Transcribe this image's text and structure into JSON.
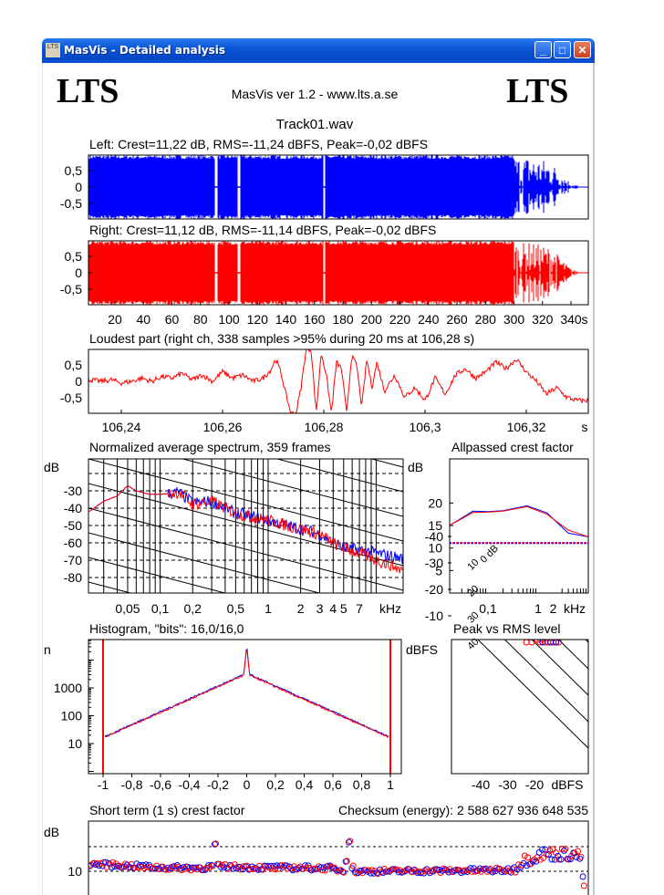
{
  "window": {
    "title": "MasVis - Detailed analysis",
    "icon_text": "LTS",
    "minimize": "_",
    "maximize": "□",
    "close": "✕"
  },
  "header": {
    "logo_left": "LTS",
    "logo_right": "LTS",
    "version": "MasVis ver 1.2 - www.lts.a.se",
    "file": "Track01.wav"
  },
  "colors": {
    "left": "#0000ff",
    "right": "#ff0000"
  },
  "chart_data": [
    {
      "id": "left-waveform",
      "type": "area",
      "title": "Left: Crest=11,22 dB, RMS=-11,24 dBFS, Peak=-0,02 dBFS",
      "yticks": [
        "0,5",
        "0",
        "-0,5"
      ],
      "ylim": [
        -1,
        1
      ],
      "xlim_s": [
        0,
        350
      ],
      "envelope_step_s": 5,
      "envelope": [
        0.97,
        0.97,
        0.97,
        0.97,
        0.97,
        0.97,
        0.97,
        0.97,
        0.97,
        0.97,
        0.97,
        0.97,
        0.97,
        0.97,
        0.97,
        0.97,
        0.97,
        0.97,
        0.97,
        0.97,
        0.97,
        0.97,
        0.97,
        0.97,
        0.97,
        0.97,
        0.97,
        0.97,
        0.97,
        0.97,
        0.97,
        0.97,
        0.97,
        0.97,
        0.97,
        0.97,
        0.97,
        0.97,
        0.97,
        0.97,
        0.97,
        0.97,
        0.97,
        0.97,
        0.97,
        0.97,
        0.97,
        0.97,
        0.97,
        0.97,
        0.97,
        0.97,
        0.97,
        0.97,
        0.97,
        0.97,
        0.97,
        0.97,
        0.97,
        0.97,
        0.97,
        0.9,
        0.95,
        0.9,
        0.85,
        0.8,
        0.6,
        0.35,
        0.12,
        0.04,
        0.02
      ],
      "dropouts_s": [
        91,
        107,
        167
      ]
    },
    {
      "id": "right-waveform",
      "type": "area",
      "title": "Right: Crest=11,12 dB, RMS=-11,14 dBFS, Peak=-0,02 dBFS",
      "yticks": [
        "0,5",
        "0",
        "-0,5"
      ],
      "ylim": [
        -1,
        1
      ],
      "xticks": [
        "20",
        "40",
        "60",
        "80",
        "100",
        "120",
        "140",
        "160",
        "180",
        "200",
        "220",
        "240",
        "260",
        "280",
        "300",
        "320",
        "340"
      ],
      "xunit": "s"
    },
    {
      "id": "loudest-part",
      "type": "line",
      "title": "Loudest part (right ch, 338 samples >95% during 20 ms at 106,28 s)",
      "yticks": [
        "0,5",
        "0",
        "-0,5"
      ],
      "xticks": [
        "106,24",
        "106,26",
        "106,28",
        "106,3",
        "106,32"
      ],
      "xunit": "s",
      "points": [
        [
          106.234,
          0.05
        ],
        [
          106.236,
          0.0
        ],
        [
          106.238,
          0.05
        ],
        [
          106.24,
          -0.05
        ],
        [
          106.242,
          0.0
        ],
        [
          106.244,
          0.1
        ],
        [
          106.246,
          0.0
        ],
        [
          106.248,
          0.15
        ],
        [
          106.25,
          0.1
        ],
        [
          106.252,
          0.25
        ],
        [
          106.254,
          0.05
        ],
        [
          106.256,
          0.2
        ],
        [
          106.258,
          0.0
        ],
        [
          106.26,
          0.3
        ],
        [
          106.262,
          0.1
        ],
        [
          106.264,
          0.2
        ],
        [
          106.266,
          0.0
        ],
        [
          106.268,
          0.1
        ],
        [
          106.2695,
          0.35
        ],
        [
          106.2705,
          0.7
        ],
        [
          106.2715,
          0.3
        ],
        [
          106.2725,
          -0.4
        ],
        [
          106.2735,
          -1.0
        ],
        [
          106.2745,
          -1.0
        ],
        [
          106.2755,
          -0.2
        ],
        [
          106.2765,
          1.0
        ],
        [
          106.2775,
          1.0
        ],
        [
          106.2785,
          -1.0
        ],
        [
          106.2795,
          0.9
        ],
        [
          106.2805,
          0.2
        ],
        [
          106.2815,
          -1.0
        ],
        [
          106.2825,
          0.6
        ],
        [
          106.2835,
          0.4
        ],
        [
          106.2845,
          -1.0
        ],
        [
          106.2855,
          0.8
        ],
        [
          106.2865,
          0.5
        ],
        [
          106.2875,
          -0.8
        ],
        [
          106.2885,
          0.7
        ],
        [
          106.2895,
          -0.2
        ],
        [
          106.2905,
          0.6
        ],
        [
          106.292,
          -0.3
        ],
        [
          106.294,
          0.2
        ],
        [
          106.296,
          -0.5
        ],
        [
          106.298,
          -0.2
        ],
        [
          106.3,
          -0.6
        ],
        [
          106.302,
          0.1
        ],
        [
          106.304,
          -0.4
        ],
        [
          106.306,
          0.2
        ],
        [
          106.308,
          0.4
        ],
        [
          106.31,
          0.1
        ],
        [
          106.312,
          0.3
        ],
        [
          106.314,
          0.6
        ],
        [
          106.316,
          0.4
        ],
        [
          106.318,
          0.7
        ],
        [
          106.32,
          0.3
        ],
        [
          106.322,
          0.0
        ],
        [
          106.324,
          -0.4
        ],
        [
          106.326,
          -0.2
        ],
        [
          106.328,
          -0.5
        ],
        [
          106.33,
          -0.6
        ],
        [
          106.332,
          -0.6
        ]
      ]
    },
    {
      "id": "spectrum",
      "type": "line",
      "title": "Normalized average spectrum, 359 frames",
      "ylabel": "dB",
      "yticks": [
        "-30",
        "-40",
        "-50",
        "-60",
        "-70",
        "-80"
      ],
      "xticks": [
        "0,05",
        "0,1",
        "0,2",
        "0,5",
        "1",
        "2",
        "3",
        "4",
        "5",
        "7"
      ],
      "xunit": "kHz",
      "series": [
        {
          "name": "left",
          "points": [
            [
              0.022,
              -42
            ],
            [
              0.03,
              -36
            ],
            [
              0.04,
              -33
            ],
            [
              0.05,
              -27
            ],
            [
              0.06,
              -30
            ],
            [
              0.08,
              -32
            ],
            [
              0.1,
              -32
            ],
            [
              0.15,
              -31
            ],
            [
              0.2,
              -37
            ],
            [
              0.3,
              -36
            ],
            [
              0.5,
              -43
            ],
            [
              0.7,
              -45
            ],
            [
              1,
              -47
            ],
            [
              1.5,
              -50
            ],
            [
              2,
              -52
            ],
            [
              3,
              -55
            ],
            [
              4,
              -60
            ],
            [
              5,
              -63
            ],
            [
              7,
              -64
            ],
            [
              10,
              -66
            ],
            [
              15,
              -68
            ],
            [
              17.8,
              -69
            ]
          ]
        },
        {
          "name": "right",
          "points": [
            [
              0.022,
              -42
            ],
            [
              0.03,
              -36
            ],
            [
              0.04,
              -33
            ],
            [
              0.05,
              -27
            ],
            [
              0.06,
              -30
            ],
            [
              0.08,
              -32
            ],
            [
              0.1,
              -32
            ],
            [
              0.15,
              -31
            ],
            [
              0.2,
              -38
            ],
            [
              0.3,
              -36
            ],
            [
              0.5,
              -43
            ],
            [
              0.7,
              -45
            ],
            [
              1,
              -47
            ],
            [
              1.5,
              -50
            ],
            [
              2,
              -52
            ],
            [
              3,
              -55
            ],
            [
              4,
              -60
            ],
            [
              5,
              -63
            ],
            [
              7,
              -66
            ],
            [
              10,
              -70
            ],
            [
              15,
              -74
            ],
            [
              17.8,
              -76
            ]
          ]
        }
      ]
    },
    {
      "id": "allpassed-crest",
      "type": "line",
      "title": "Allpassed crest factor",
      "ylabel": "dB",
      "yticks": [
        "20",
        "15",
        "10",
        "5"
      ],
      "xticks": [
        "0,1",
        "1",
        "2"
      ],
      "xunit": "kHz",
      "reference_db": 11.1,
      "series": [
        {
          "name": "left",
          "points": [
            [
              0.017,
              15
            ],
            [
              0.05,
              18.2
            ],
            [
              0.1,
              18.1
            ],
            [
              0.2,
              18.3
            ],
            [
              0.6,
              19.4
            ],
            [
              1.5,
              17.8
            ],
            [
              4,
              13.3
            ],
            [
              10,
              12.5
            ]
          ]
        },
        {
          "name": "right",
          "points": [
            [
              0.017,
              15
            ],
            [
              0.05,
              17.9
            ],
            [
              0.1,
              18.0
            ],
            [
              0.2,
              18.2
            ],
            [
              0.6,
              19.2
            ],
            [
              1.5,
              17.5
            ],
            [
              4,
              14
            ],
            [
              10,
              12.5
            ]
          ]
        }
      ]
    },
    {
      "id": "histogram",
      "type": "line",
      "title": "Histogram, \"bits\": 16,0/16,0",
      "ylabel": "n",
      "yticks": [
        "1000",
        "100",
        "10"
      ],
      "xticks": [
        "-1",
        "-0,8",
        "-0,6",
        "-0,4",
        "-0,2",
        "0",
        "0,2",
        "0,4",
        "0,6",
        "0,8",
        "1"
      ],
      "log_n_center": 3.5,
      "log_n_edge": 1.2,
      "peak_log_n": 4.5
    },
    {
      "id": "peak-vs-rms",
      "type": "scatter",
      "title": "Peak vs RMS level",
      "ylabel": "dBFS",
      "xlabel": "dBFS",
      "yticks": [
        "-10",
        "-20",
        "-30",
        "-40"
      ],
      "xticks": [
        "-40",
        "-30",
        "-20"
      ],
      "crest_lines": [
        "40",
        "30",
        "20",
        "10",
        "0 dB"
      ],
      "series": [
        {
          "name": "right",
          "points": [
            [
              -47,
              -32
            ],
            [
              -46,
              -28
            ],
            [
              -44,
              -27
            ],
            [
              -38,
              -19
            ],
            [
              -38,
              -21
            ],
            [
              -36,
              -22
            ],
            [
              -29,
              -14
            ],
            [
              -28,
              -13
            ],
            [
              -26,
              -9
            ],
            [
              -25,
              -8
            ],
            [
              -22,
              -9
            ],
            [
              -22,
              -5
            ],
            [
              -21,
              -7
            ],
            [
              -20,
              -4
            ],
            [
              -19,
              -6
            ],
            [
              -18,
              -3
            ],
            [
              -23,
              0
            ],
            [
              -21,
              0
            ],
            [
              -19,
              -1
            ],
            [
              -17,
              -1
            ],
            [
              -16,
              0
            ],
            [
              -15,
              0
            ],
            [
              -14,
              0
            ],
            [
              -13,
              0
            ],
            [
              -12,
              0
            ],
            [
              -11,
              0
            ],
            [
              -20,
              -2
            ],
            [
              -18,
              0
            ]
          ]
        },
        {
          "name": "left",
          "points": [
            [
              -47,
              -33
            ],
            [
              -38,
              -18
            ],
            [
              -37,
              -19
            ],
            [
              -29,
              -13
            ],
            [
              -26,
              -8
            ],
            [
              -22,
              -7
            ],
            [
              -21,
              -3
            ],
            [
              -18,
              -4
            ],
            [
              -17,
              0
            ],
            [
              -14,
              0
            ],
            [
              -12,
              0
            ]
          ]
        }
      ]
    },
    {
      "id": "short-term-crest",
      "type": "scatter",
      "title": "Short term (1 s) crest factor",
      "ylabel": "dB",
      "yticks": [
        "10"
      ],
      "checksum": "Checksum (energy):  2 588 627 936 648 535",
      "profile": [
        [
          0,
          13
        ],
        [
          20,
          12.5
        ],
        [
          50,
          11.5
        ],
        [
          80,
          11.3
        ],
        [
          88,
          12
        ],
        [
          89,
          20.7
        ],
        [
          91,
          12
        ],
        [
          120,
          11.5
        ],
        [
          170,
          11.3
        ],
        [
          180,
          10
        ],
        [
          184,
          24
        ],
        [
          186,
          10
        ],
        [
          200,
          10
        ],
        [
          250,
          10.2
        ],
        [
          298,
          10.5
        ],
        [
          305,
          14
        ],
        [
          320,
          17
        ],
        [
          340,
          17
        ],
        [
          347,
          16
        ],
        [
          349,
          3
        ]
      ]
    }
  ]
}
